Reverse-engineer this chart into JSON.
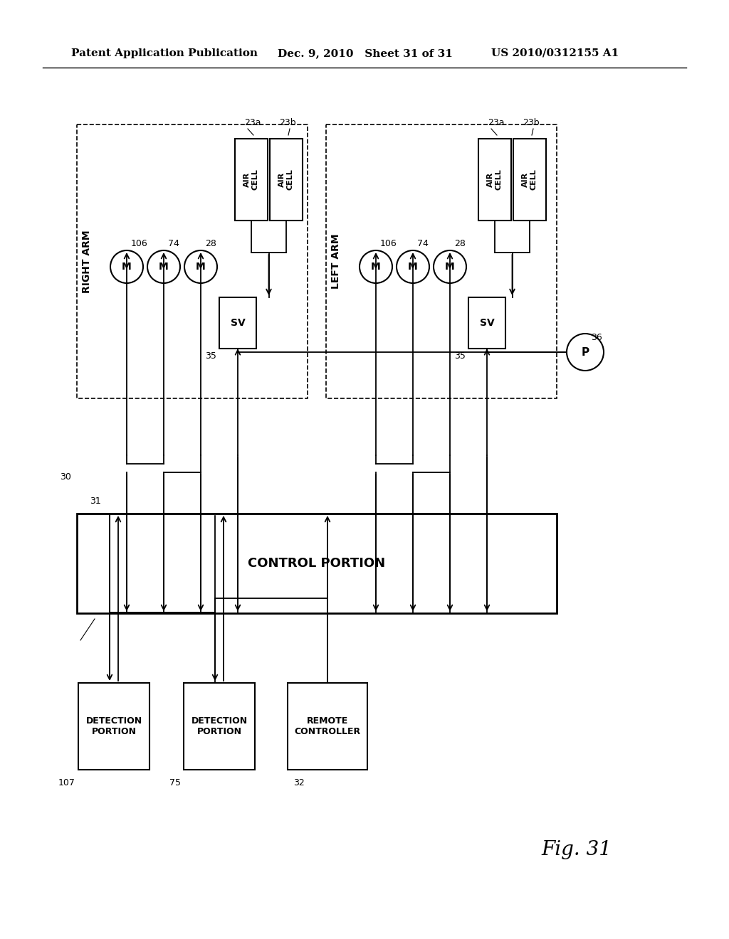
{
  "title_left": "Patent Application Publication",
  "title_mid": "Dec. 9, 2010   Sheet 31 of 31",
  "title_right": "US 2010/0312155 A1",
  "fig_label": "Fig. 31",
  "background": "#ffffff",
  "line_color": "#000000"
}
